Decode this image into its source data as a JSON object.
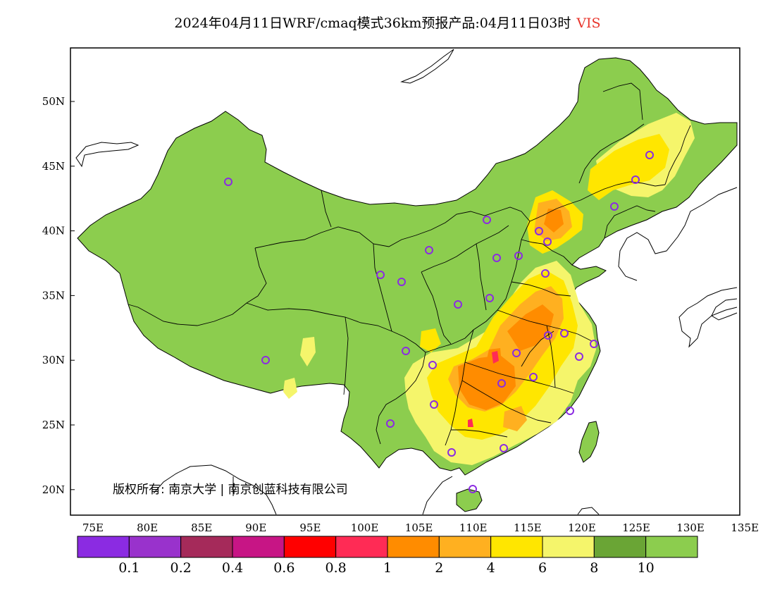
{
  "title": {
    "text": "2024年04月11日WRF/cmaq模式36km预报产品:04月11日03时",
    "variable": "VIS"
  },
  "axes": {
    "lon_ticks": [
      "75E",
      "80E",
      "85E",
      "90E",
      "95E",
      "100E",
      "105E",
      "110E",
      "115E",
      "120E",
      "125E",
      "130E",
      "135E"
    ],
    "lat_ticks": [
      "50N",
      "45N",
      "40N",
      "35N",
      "30N",
      "25N",
      "20N"
    ]
  },
  "colorbar": {
    "colors": [
      "#8b2be2",
      "#9932cc",
      "#a52a5a",
      "#c71585",
      "#ff0000",
      "#ff2b55",
      "#ff8c00",
      "#ffb020",
      "#ffe600",
      "#f5f56b",
      "#6aa535",
      "#8ccd4e"
    ],
    "labels": [
      "0.1",
      "0.2",
      "0.4",
      "0.6",
      "0.8",
      "1",
      "2",
      "4",
      "6",
      "8",
      "10"
    ]
  },
  "copyright": "版权所有: 南京大学 | 南京创蓝科技有限公司",
  "style": {
    "land_color": "#8ccd4e",
    "station_color": "#8b2be2"
  }
}
